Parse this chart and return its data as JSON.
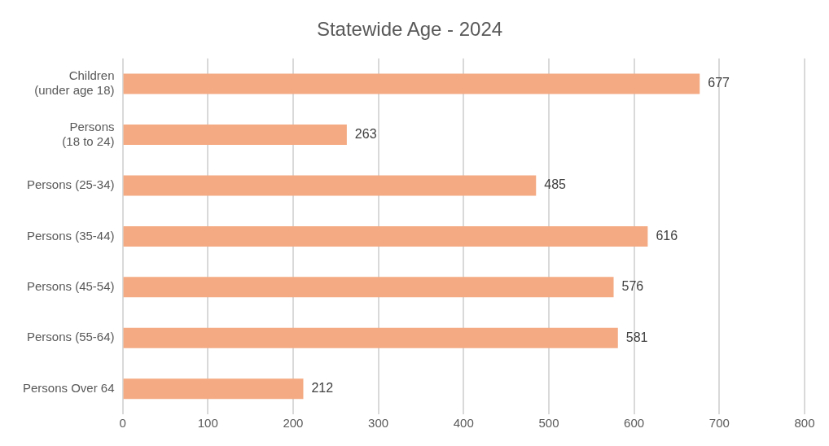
{
  "chart_data": {
    "type": "bar",
    "orientation": "horizontal",
    "title": "Statewide Age - 2024",
    "categories": [
      "Children (under age 18)",
      "Persons (18 to 24)",
      "Persons (25-34)",
      "Persons (35-44)",
      "Persons (45-54)",
      "Persons (55-64)",
      "Persons Over 64"
    ],
    "values": [
      677,
      263,
      485,
      616,
      576,
      581,
      212
    ],
    "color": "#f4aa82",
    "xlim": [
      0,
      800
    ],
    "xticks": [
      0,
      100,
      200,
      300,
      400,
      500,
      600,
      700,
      800
    ],
    "grid": "x",
    "legend": false,
    "data_labels": true
  }
}
